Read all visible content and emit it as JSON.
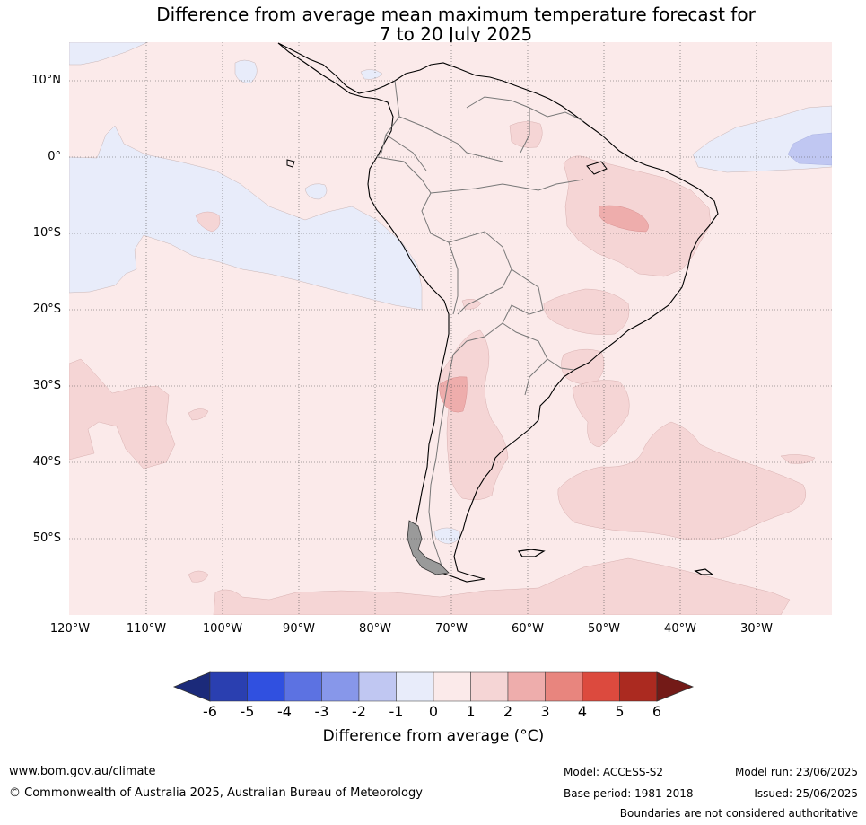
{
  "title": {
    "line1": "Difference from average mean maximum temperature forecast for",
    "line2": "7 to 20 July 2025"
  },
  "map": {
    "region": "South America",
    "latitude_labels": [
      "10°N",
      "0°",
      "10°S",
      "20°S",
      "30°S",
      "40°S",
      "50°S"
    ],
    "longitude_labels": [
      "120°W",
      "110°W",
      "100°W",
      "90°W",
      "80°W",
      "70°W",
      "60°W",
      "50°W",
      "40°W",
      "30°W"
    ],
    "gridlines": true,
    "dominant_category": "0 to 1",
    "features": [
      {
        "name": "Eastern Pacific cool anomaly",
        "category": "-1 to 0"
      },
      {
        "name": "Equatorial Atlantic cool anomaly",
        "category": "-1 to 0",
        "core": "-2 to -1"
      },
      {
        "name": "Northeast Brazil warm anomaly",
        "category": "1 to 2",
        "core": "2 to 3"
      },
      {
        "name": "Central Argentina warm anomaly",
        "category": "1 to 2",
        "core": "2 to 3"
      },
      {
        "name": "South Atlantic warm anomaly",
        "category": "1 to 2"
      }
    ]
  },
  "colorbar": {
    "ticks": [
      "-6",
      "-5",
      "-4",
      "-3",
      "-2",
      "-1",
      "0",
      "1",
      "2",
      "3",
      "4",
      "5",
      "6"
    ],
    "colors": [
      "#1b2a7a",
      "#2a3fb0",
      "#3050e0",
      "#5c72e2",
      "#8797ea",
      "#c0c7f2",
      "#e8ecfa",
      "#fbeaea",
      "#f5d5d5",
      "#eeadac",
      "#e8857e",
      "#dc4a3e",
      "#ab2a20",
      "#731a17"
    ],
    "extend": "both",
    "label": "Difference from average (°C)"
  },
  "footer": {
    "website": "www.bom.gov.au/climate",
    "copyright": "© Commonwealth of Australia 2025, Australian Bureau of Meteorology",
    "model": "Model: ACCESS-S2",
    "base_period": "Base period: 1981-2018",
    "model_run": "Model run: 23/06/2025",
    "issued": "Issued: 25/06/2025",
    "disclaimer": "Boundaries are not considered authoritative"
  }
}
